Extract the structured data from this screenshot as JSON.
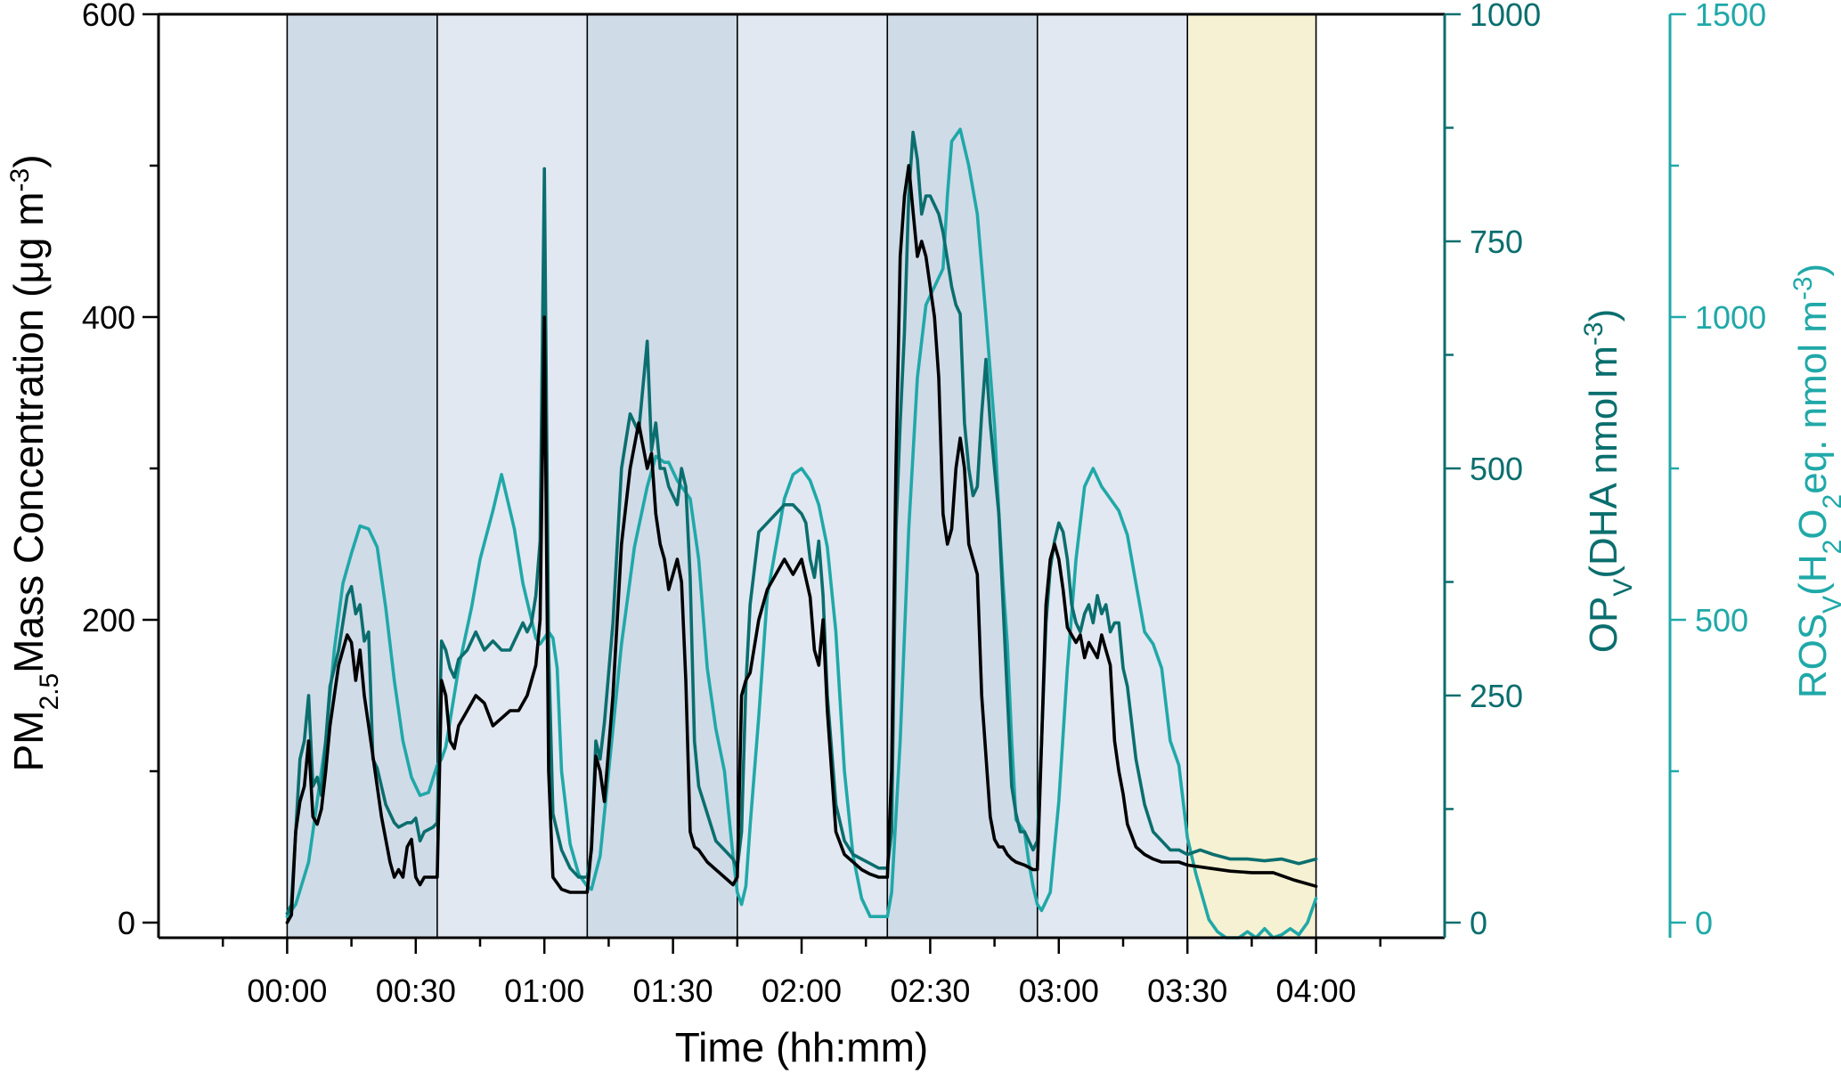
{
  "chart_data": {
    "type": "line",
    "xlabel": "Time (hh:mm)",
    "x_ticks": [
      "00:00",
      "00:30",
      "01:00",
      "01:30",
      "02:00",
      "02:30",
      "03:00",
      "03:30",
      "04:00"
    ],
    "x_tick_minutes": [
      0,
      30,
      60,
      90,
      120,
      150,
      180,
      210,
      240
    ],
    "xlim_minutes": [
      -30,
      270
    ],
    "y_axes": {
      "left": {
        "label_parts": [
          "PM",
          "2.5",
          "Mass Concentration (",
          "μg m",
          "-3",
          ")"
        ],
        "ylim": [
          -10,
          600
        ],
        "ticks": [
          "0",
          "200",
          "400",
          "600"
        ],
        "tick_values": [
          0,
          200,
          400,
          600
        ],
        "color": "#000000"
      },
      "right1": {
        "label_parts": [
          "OP",
          "V",
          "(DHA nmol m",
          "-3",
          ")"
        ],
        "ylim": [
          -16.7,
          1000
        ],
        "ticks": [
          "0",
          "250",
          "500",
          "750",
          "1000"
        ],
        "tick_values": [
          0,
          250,
          500,
          750,
          1000
        ],
        "color": "#0b6e6e"
      },
      "right2": {
        "label_parts": [
          "ROS",
          "V",
          "(H",
          "2",
          "O",
          "2",
          "eq. nmol m",
          "-3",
          ")"
        ],
        "ylim": [
          -25,
          1500
        ],
        "ticks": [
          "0",
          "500",
          "1000",
          "1500"
        ],
        "tick_values": [
          0,
          500,
          1000,
          1500
        ],
        "color": "#20a8a8"
      }
    },
    "shaded_intervals": [
      {
        "from": 0,
        "to": 35,
        "color": "#d0dbe8"
      },
      {
        "from": 35,
        "to": 70,
        "color": "#e1e8f1"
      },
      {
        "from": 70,
        "to": 105,
        "color": "#d0dbe8"
      },
      {
        "from": 105,
        "to": 140,
        "color": "#e1e8f1"
      },
      {
        "from": 140,
        "to": 175,
        "color": "#d0dbe8"
      },
      {
        "from": 175,
        "to": 210,
        "color": "#e1e8f1"
      },
      {
        "from": 210,
        "to": 240,
        "color": "#f6f1d3"
      }
    ],
    "series": [
      {
        "axis": "right2",
        "color": "#20a8a8",
        "x": [
          0,
          2,
          5,
          9,
          11,
          13,
          15,
          17,
          19,
          21,
          23,
          25,
          27,
          29,
          31,
          33,
          35,
          36,
          37,
          40,
          43,
          45,
          48,
          50,
          53,
          55,
          57,
          58,
          59,
          60,
          61,
          62,
          63,
          64,
          66,
          68,
          70,
          71,
          73,
          75,
          78,
          81,
          84,
          86,
          88,
          89,
          91,
          94,
          96,
          98,
          100,
          102,
          104,
          105,
          106,
          107,
          108,
          110,
          112,
          114,
          116,
          118,
          120,
          122,
          124,
          126,
          128,
          130,
          132,
          134,
          136,
          138,
          140,
          141,
          143,
          145,
          147,
          149,
          151,
          153,
          154,
          155,
          157,
          158,
          159,
          161,
          163,
          165,
          166,
          167,
          168,
          169,
          170,
          171,
          172,
          173,
          174,
          175,
          176,
          178,
          180,
          182,
          184,
          186,
          188,
          190,
          192,
          194,
          196,
          198,
          199,
          200,
          202,
          204,
          205,
          206,
          208,
          210,
          212,
          214,
          215,
          217,
          219,
          220,
          222,
          224,
          226,
          228,
          230,
          232,
          234,
          236,
          238,
          240
        ],
        "y": [
          10,
          30,
          100,
          300,
          450,
          560,
          610,
          655,
          650,
          620,
          520,
          400,
          300,
          240,
          210,
          215,
          260,
          270,
          290,
          420,
          520,
          600,
          680,
          740,
          650,
          560,
          500,
          470,
          460,
          470,
          480,
          470,
          420,
          250,
          130,
          80,
          60,
          55,
          110,
          250,
          460,
          620,
          720,
          770,
          760,
          760,
          730,
          700,
          600,
          420,
          320,
          250,
          110,
          50,
          30,
          60,
          160,
          340,
          540,
          620,
          700,
          740,
          750,
          730,
          690,
          620,
          480,
          250,
          110,
          40,
          10,
          10,
          10,
          50,
          300,
          650,
          900,
          1020,
          1050,
          1080,
          1200,
          1290,
          1310,
          1280,
          1250,
          1170,
          1000,
          820,
          680,
          560,
          460,
          300,
          170,
          160,
          150,
          100,
          60,
          30,
          20,
          50,
          200,
          420,
          600,
          720,
          750,
          720,
          700,
          680,
          640,
          560,
          520,
          480,
          460,
          420,
          360,
          300,
          260,
          140,
          80,
          30,
          5,
          -15,
          -25,
          -25,
          -25,
          -15,
          -25,
          -10,
          -25,
          -20,
          -10,
          -20,
          0,
          40
        ]
      },
      {
        "axis": "right1",
        "color": "#0b6e6e",
        "x": [
          0,
          1,
          2,
          3,
          4,
          5,
          6,
          7,
          8,
          9,
          10,
          11,
          12,
          13,
          14,
          15,
          16,
          17,
          18,
          19,
          20,
          21,
          22,
          23,
          24,
          25,
          26,
          28,
          29,
          30,
          31,
          32,
          34,
          35,
          36,
          37,
          38,
          39,
          40,
          42,
          44,
          46,
          48,
          50,
          52,
          54,
          55,
          56,
          57,
          58,
          59,
          60,
          61,
          62,
          63,
          64,
          66,
          68,
          70,
          71,
          72,
          73,
          74,
          76,
          78,
          80,
          82,
          84,
          85,
          86,
          87,
          88,
          89,
          90,
          91,
          92,
          93,
          94,
          95,
          96,
          98,
          100,
          102,
          104,
          105,
          106,
          107,
          108,
          110,
          112,
          114,
          116,
          118,
          120,
          121,
          122,
          123,
          124,
          125,
          126,
          128,
          130,
          132,
          134,
          136,
          138,
          140,
          141,
          142,
          143,
          144,
          145,
          146,
          147,
          148,
          149,
          150,
          151,
          152,
          153,
          154,
          155,
          156,
          157,
          158,
          159,
          160,
          161,
          162,
          163,
          164,
          165,
          166,
          167,
          168,
          169,
          170,
          171,
          172,
          173,
          174,
          175,
          176,
          177,
          178,
          179,
          180,
          181,
          182,
          183,
          184,
          185,
          186,
          187,
          188,
          189,
          190,
          191,
          192,
          193,
          194,
          195,
          196,
          198,
          200,
          202,
          204,
          206,
          208,
          210,
          213,
          216,
          220,
          224,
          228,
          232,
          236,
          240
        ],
        "y": [
          10,
          20,
          100,
          180,
          200,
          250,
          150,
          160,
          140,
          200,
          260,
          280,
          300,
          330,
          360,
          370,
          340,
          350,
          310,
          320,
          180,
          170,
          150,
          130,
          120,
          110,
          105,
          110,
          110,
          115,
          90,
          100,
          105,
          110,
          310,
          300,
          280,
          270,
          290,
          300,
          320,
          300,
          310,
          300,
          300,
          320,
          330,
          320,
          330,
          360,
          420,
          830,
          300,
          120,
          100,
          80,
          60,
          50,
          50,
          80,
          200,
          180,
          220,
          330,
          500,
          560,
          540,
          640,
          520,
          550,
          500,
          500,
          480,
          470,
          460,
          500,
          480,
          380,
          200,
          150,
          120,
          90,
          80,
          70,
          60,
          100,
          260,
          350,
          430,
          440,
          450,
          460,
          460,
          450,
          440,
          400,
          380,
          420,
          360,
          250,
          130,
          90,
          75,
          70,
          65,
          60,
          60,
          100,
          430,
          550,
          650,
          800,
          870,
          840,
          780,
          800,
          800,
          790,
          780,
          760,
          730,
          700,
          680,
          670,
          550,
          500,
          470,
          480,
          560,
          620,
          550,
          500,
          450,
          350,
          250,
          150,
          120,
          100,
          100,
          90,
          80,
          90,
          200,
          330,
          390,
          420,
          440,
          430,
          400,
          350,
          330,
          320,
          340,
          350,
          330,
          360,
          340,
          350,
          320,
          330,
          330,
          280,
          260,
          180,
          130,
          100,
          90,
          80,
          80,
          75,
          80,
          75,
          70,
          70,
          68,
          70,
          65,
          70
        ]
      },
      {
        "axis": "left",
        "color": "#000000",
        "x": [
          0,
          1,
          2,
          3,
          4,
          5,
          6,
          7,
          8,
          9,
          10,
          12,
          13,
          14,
          15,
          16,
          17,
          18,
          19,
          20,
          22,
          24,
          25,
          26,
          27,
          28,
          29,
          30,
          31,
          32,
          34,
          35,
          36,
          37,
          38,
          39,
          40,
          42,
          44,
          46,
          48,
          50,
          52,
          54,
          56,
          57,
          58,
          59,
          60,
          61,
          62,
          64,
          66,
          68,
          70,
          71,
          72,
          73,
          74,
          76,
          78,
          80,
          82,
          84,
          85,
          86,
          87,
          88,
          89,
          90,
          91,
          92,
          93,
          94,
          95,
          96,
          98,
          100,
          102,
          104,
          105,
          106,
          107,
          108,
          110,
          112,
          114,
          116,
          118,
          120,
          122,
          123,
          124,
          125,
          126,
          128,
          130,
          132,
          134,
          136,
          138,
          140,
          141,
          142,
          143,
          144,
          145,
          146,
          147,
          148,
          149,
          150,
          151,
          152,
          153,
          154,
          155,
          156,
          157,
          158,
          159,
          160,
          161,
          162,
          163,
          164,
          165,
          166,
          167,
          168,
          169,
          170,
          172,
          174,
          175,
          176,
          177,
          178,
          179,
          180,
          181,
          182,
          183,
          184,
          185,
          186,
          187,
          188,
          189,
          190,
          191,
          192,
          193,
          194,
          195,
          196,
          198,
          200,
          202,
          204,
          206,
          208,
          210,
          215,
          220,
          225,
          230,
          235,
          240
        ],
        "y": [
          0,
          5,
          60,
          80,
          90,
          120,
          70,
          65,
          75,
          100,
          130,
          170,
          180,
          190,
          185,
          160,
          180,
          150,
          130,
          110,
          70,
          40,
          30,
          35,
          30,
          50,
          55,
          30,
          25,
          30,
          30,
          30,
          160,
          150,
          120,
          115,
          130,
          140,
          150,
          145,
          130,
          135,
          140,
          140,
          150,
          160,
          170,
          200,
          400,
          100,
          30,
          22,
          20,
          20,
          20,
          50,
          110,
          100,
          80,
          150,
          250,
          300,
          330,
          300,
          310,
          270,
          250,
          240,
          220,
          230,
          240,
          225,
          160,
          60,
          50,
          48,
          40,
          35,
          30,
          25,
          30,
          150,
          160,
          165,
          200,
          220,
          230,
          240,
          230,
          240,
          215,
          180,
          170,
          200,
          140,
          60,
          45,
          40,
          35,
          32,
          30,
          30,
          100,
          300,
          440,
          480,
          500,
          470,
          440,
          450,
          440,
          420,
          400,
          360,
          270,
          250,
          260,
          300,
          320,
          300,
          250,
          240,
          230,
          150,
          110,
          70,
          55,
          50,
          50,
          45,
          42,
          40,
          38,
          35,
          35,
          120,
          210,
          240,
          250,
          240,
          220,
          195,
          190,
          185,
          190,
          175,
          185,
          180,
          175,
          190,
          180,
          170,
          120,
          100,
          85,
          65,
          50,
          45,
          42,
          40,
          40,
          40,
          38,
          36,
          34,
          33,
          33,
          28,
          24
        ]
      }
    ]
  }
}
